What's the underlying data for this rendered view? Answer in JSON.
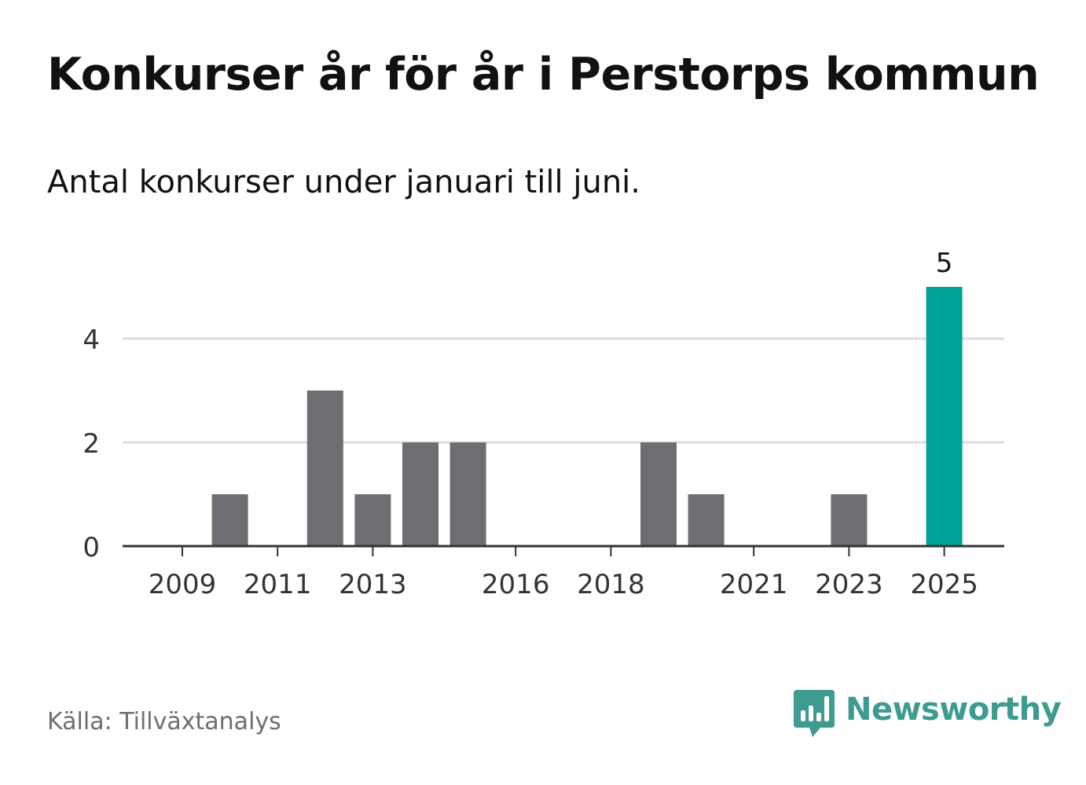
{
  "title": "Konkurser år för år i Perstorps kommun",
  "subtitle": "Antal konkurser under januari till juni.",
  "source": "Källa: Tillväxtanalys",
  "brand": {
    "name": "Newsworthy",
    "icon": "newsworthy-logo-icon",
    "color": "#3d9b8f"
  },
  "chart_data": {
    "type": "bar",
    "categories": [
      "2009",
      "2010",
      "2011",
      "2012",
      "2013",
      "2014",
      "2015",
      "2016",
      "2017",
      "2018",
      "2019",
      "2020",
      "2021",
      "2022",
      "2023",
      "2024",
      "2025"
    ],
    "values": [
      0,
      1,
      0,
      3,
      1,
      2,
      2,
      0,
      0,
      0,
      2,
      1,
      0,
      0,
      1,
      0,
      5
    ],
    "x_tick_labels": [
      "2009",
      "2011",
      "2013",
      "2016",
      "2018",
      "2021",
      "2023",
      "2025"
    ],
    "y_ticks": [
      0,
      2,
      4
    ],
    "ylim": [
      0,
      5
    ],
    "grid": true,
    "highlight": {
      "category": "2025",
      "label": "5"
    },
    "colors": {
      "bar": "#6e6d72",
      "highlight": "#00a397",
      "grid": "#dddddd",
      "axis": "#333333"
    },
    "xlabel": "",
    "ylabel": ""
  }
}
